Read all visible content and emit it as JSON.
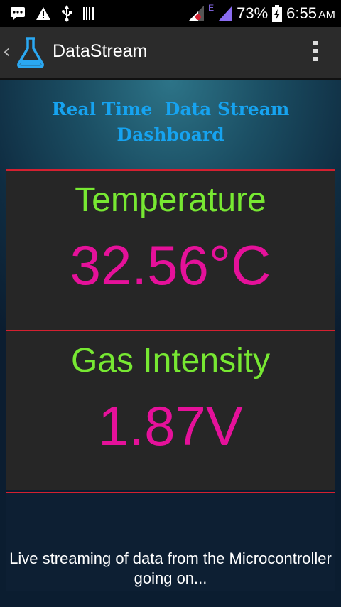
{
  "status_bar": {
    "icons_left": [
      "message-icon",
      "warning-icon",
      "usb-icon",
      "barcode-icon"
    ],
    "network_label": "E",
    "battery_percent": "73%",
    "time": "6:55",
    "ampm": "AM"
  },
  "action_bar": {
    "title": "DataStream",
    "icon": "flask-icon"
  },
  "dashboard": {
    "heading": "Real Time  Data Stream\nDashboard",
    "temperature_label": "Temperature",
    "temperature_value": "32.56°C",
    "gas_label": "Gas Intensity",
    "gas_value": "1.87V",
    "footer": "Live streaming of data from the Microcontroller going on..."
  },
  "colors": {
    "heading": "#16a3f0",
    "label": "#77e832",
    "value": "#e5119a",
    "divider": "#d42030"
  }
}
